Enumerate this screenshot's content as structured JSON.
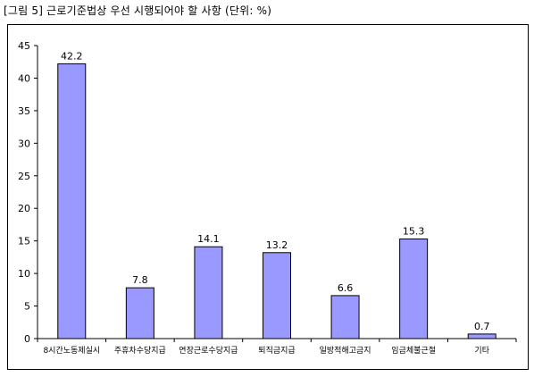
{
  "caption": "[그림 5] 근로기준법상 우선 시행되어야 할 사항 (단위: %)",
  "chart_data": {
    "type": "bar",
    "title": "",
    "xlabel": "",
    "ylabel": "",
    "ylim": [
      0,
      45
    ],
    "yticks": [
      0,
      5,
      10,
      15,
      20,
      25,
      30,
      35,
      40,
      45
    ],
    "categories": [
      "8시간노동제실시",
      "주휴차수당지급",
      "연장근로수당지급",
      "퇴직금지급",
      "일방적해고금지",
      "임금체불근절",
      "기타"
    ],
    "values": [
      42.2,
      7.8,
      14.1,
      13.2,
      6.6,
      15.3,
      0.7
    ],
    "data_labels": [
      "42.2",
      "7.8",
      "14.1",
      "13.2",
      "6.6",
      "15.3",
      "0.7"
    ],
    "bar_color": "#9999ff",
    "bar_edge_color": "#000000",
    "grid": false,
    "legend": "none"
  }
}
